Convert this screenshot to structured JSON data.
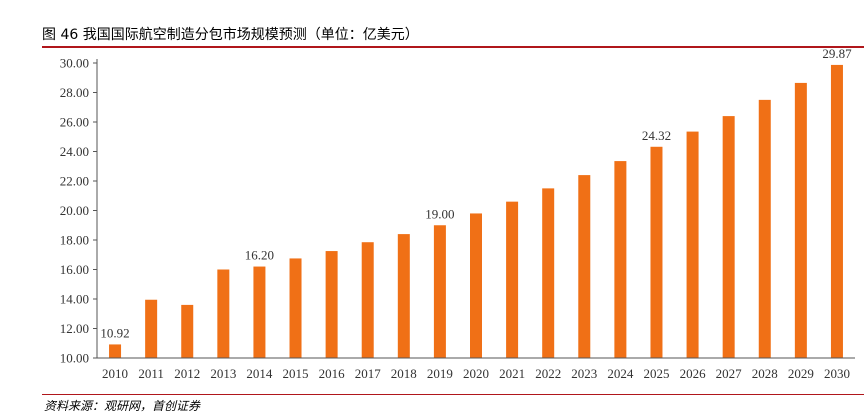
{
  "header": {
    "title": "图 46 我国国际航空制造分包市场规模预测（单位：亿美元）"
  },
  "footer": {
    "source": "资料来源：观研网，首创证券"
  },
  "colors": {
    "bar": "#f07016",
    "rule": "#b0161b",
    "axis": "#555555",
    "text": "#333333"
  },
  "chart_data": {
    "type": "bar",
    "categories": [
      "2010",
      "2011",
      "2012",
      "2013",
      "2014",
      "2015",
      "2016",
      "2017",
      "2018",
      "2019",
      "2020",
      "2021",
      "2022",
      "2023",
      "2024",
      "2025",
      "2026",
      "2027",
      "2028",
      "2029",
      "2030"
    ],
    "values": [
      10.92,
      13.95,
      13.6,
      16.0,
      16.2,
      16.75,
      17.25,
      17.85,
      18.4,
      19.0,
      19.8,
      20.6,
      21.5,
      22.4,
      23.35,
      24.32,
      25.35,
      26.4,
      27.5,
      28.65,
      29.87
    ],
    "yticks": [
      "10.00",
      "12.00",
      "14.00",
      "16.00",
      "18.00",
      "20.00",
      "22.00",
      "24.00",
      "26.00",
      "28.00",
      "30.00"
    ],
    "ylim": [
      10,
      30
    ],
    "data_labels": [
      {
        "index": 0,
        "text": "10.92"
      },
      {
        "index": 4,
        "text": "16.20"
      },
      {
        "index": 9,
        "text": "19.00"
      },
      {
        "index": 15,
        "text": "24.32"
      },
      {
        "index": 20,
        "text": "29.87"
      }
    ],
    "title": "",
    "xlabel": "",
    "ylabel": "",
    "grid": false
  }
}
